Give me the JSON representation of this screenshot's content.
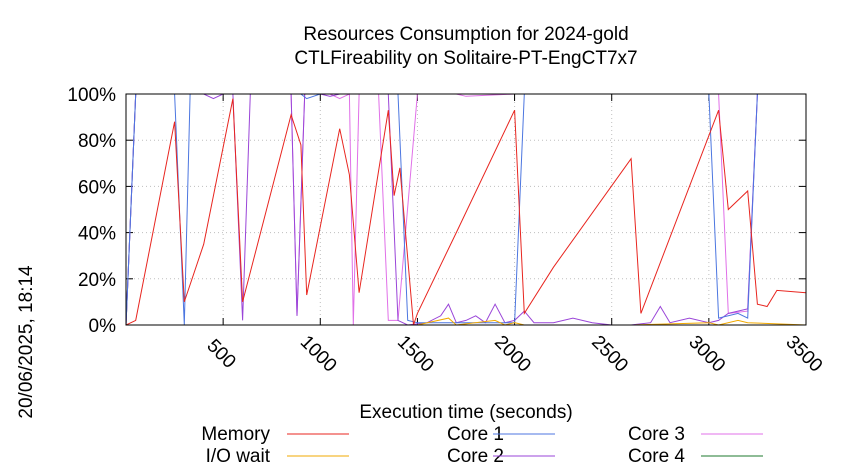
{
  "chart_data": {
    "type": "line",
    "title_line1": "Resources Consumption for 2024-gold",
    "title_line2": "CTLFireability on Solitaire-PT-EngCT7x7",
    "xlabel": "Execution time (seconds)",
    "ylabel": "",
    "side_label": "20/06/2025, 18:14",
    "xlim": [
      0,
      3500
    ],
    "ylim": [
      0,
      100
    ],
    "x_ticks": [
      {
        "value": 500,
        "label": "500"
      },
      {
        "value": 1000,
        "label": "1000"
      },
      {
        "value": 1500,
        "label": "1500"
      },
      {
        "value": 2000,
        "label": "2000"
      },
      {
        "value": 2500,
        "label": "2500"
      },
      {
        "value": 3000,
        "label": "3000"
      },
      {
        "value": 3500,
        "label": "3500"
      }
    ],
    "y_ticks": [
      {
        "value": 0,
        "label": "0%"
      },
      {
        "value": 20,
        "label": "20%"
      },
      {
        "value": 40,
        "label": "40%"
      },
      {
        "value": 60,
        "label": "60%"
      },
      {
        "value": 80,
        "label": "80%"
      },
      {
        "value": 100,
        "label": "100%"
      }
    ],
    "grid": true,
    "legend_position": "bottom",
    "series": [
      {
        "name": "Memory",
        "color": "#e8251f",
        "points": [
          [
            0,
            0
          ],
          [
            50,
            2
          ],
          [
            250,
            88
          ],
          [
            300,
            10
          ],
          [
            400,
            35
          ],
          [
            550,
            98
          ],
          [
            600,
            10
          ],
          [
            850,
            91
          ],
          [
            900,
            78
          ],
          [
            930,
            13
          ],
          [
            1100,
            85
          ],
          [
            1150,
            65
          ],
          [
            1200,
            14
          ],
          [
            1350,
            93
          ],
          [
            1380,
            56
          ],
          [
            1410,
            68
          ],
          [
            1480,
            0
          ],
          [
            1500,
            5
          ],
          [
            1700,
            40
          ],
          [
            2000,
            93
          ],
          [
            2050,
            5
          ],
          [
            2200,
            25
          ],
          [
            2600,
            72
          ],
          [
            2650,
            5
          ],
          [
            3050,
            93
          ],
          [
            3100,
            50
          ],
          [
            3200,
            58
          ],
          [
            3250,
            9
          ],
          [
            3300,
            8
          ],
          [
            3350,
            15
          ],
          [
            3500,
            14
          ]
        ]
      },
      {
        "name": "I/O wait",
        "color": "#f2a900",
        "points": [
          [
            0,
            0
          ],
          [
            1500,
            0
          ],
          [
            1660,
            3
          ],
          [
            1700,
            0
          ],
          [
            1900,
            2
          ],
          [
            1950,
            0
          ],
          [
            2000,
            1
          ],
          [
            2050,
            0
          ],
          [
            2600,
            0
          ],
          [
            3000,
            1
          ],
          [
            3050,
            0
          ],
          [
            3150,
            2
          ],
          [
            3200,
            1
          ],
          [
            3500,
            0
          ]
        ]
      },
      {
        "name": "Core 1",
        "color": "#4c76e0",
        "points": [
          [
            0,
            0
          ],
          [
            50,
            100
          ],
          [
            250,
            100
          ],
          [
            300,
            0
          ],
          [
            330,
            100
          ],
          [
            650,
            100
          ],
          [
            700,
            100
          ],
          [
            900,
            100
          ],
          [
            930,
            98
          ],
          [
            1000,
            100
          ],
          [
            1400,
            100
          ],
          [
            1450,
            2
          ],
          [
            1500,
            1
          ],
          [
            2000,
            1
          ],
          [
            2050,
            100
          ],
          [
            2150,
            100
          ],
          [
            2600,
            100
          ],
          [
            3000,
            100
          ],
          [
            3050,
            3
          ],
          [
            3150,
            5
          ],
          [
            3200,
            3
          ],
          [
            3250,
            100
          ],
          [
            3500,
            100
          ]
        ]
      },
      {
        "name": "Core 2",
        "color": "#9a45d8",
        "points": [
          [
            0,
            0
          ],
          [
            50,
            100
          ],
          [
            350,
            100
          ],
          [
            400,
            100
          ],
          [
            450,
            98
          ],
          [
            500,
            100
          ],
          [
            550,
            100
          ],
          [
            600,
            2
          ],
          [
            640,
            100
          ],
          [
            850,
            100
          ],
          [
            880,
            4
          ],
          [
            920,
            100
          ],
          [
            1000,
            100
          ],
          [
            1050,
            99
          ],
          [
            1100,
            100
          ],
          [
            1350,
            100
          ],
          [
            1400,
            2
          ],
          [
            1450,
            0
          ],
          [
            1550,
            1
          ],
          [
            1620,
            4
          ],
          [
            1660,
            9
          ],
          [
            1700,
            1
          ],
          [
            1750,
            2
          ],
          [
            1800,
            4
          ],
          [
            1850,
            1
          ],
          [
            1900,
            9
          ],
          [
            1950,
            1
          ],
          [
            2000,
            2
          ],
          [
            2050,
            6
          ],
          [
            2100,
            1
          ],
          [
            2200,
            1
          ],
          [
            2300,
            3
          ],
          [
            2400,
            1
          ],
          [
            2500,
            0
          ],
          [
            2600,
            0
          ],
          [
            2700,
            1
          ],
          [
            2750,
            8
          ],
          [
            2800,
            1
          ],
          [
            2900,
            3
          ],
          [
            3000,
            1
          ],
          [
            3050,
            2
          ],
          [
            3100,
            5
          ],
          [
            3150,
            6
          ],
          [
            3200,
            7
          ],
          [
            3250,
            100
          ],
          [
            3500,
            100
          ]
        ]
      },
      {
        "name": "Core 3",
        "color": "#e070e8",
        "points": [
          [
            0,
            0
          ],
          [
            50,
            100
          ],
          [
            850,
            100
          ],
          [
            880,
            4
          ],
          [
            920,
            100
          ],
          [
            1050,
            100
          ],
          [
            1100,
            98
          ],
          [
            1150,
            100
          ],
          [
            1170,
            0
          ],
          [
            1200,
            100
          ],
          [
            1300,
            100
          ],
          [
            1350,
            2
          ],
          [
            1400,
            2
          ],
          [
            1500,
            100
          ],
          [
            1700,
            100
          ],
          [
            1750,
            99
          ],
          [
            2000,
            100
          ],
          [
            2050,
            100
          ],
          [
            2200,
            100
          ],
          [
            2600,
            100
          ],
          [
            3000,
            100
          ],
          [
            3050,
            100
          ],
          [
            3100,
            5
          ],
          [
            3200,
            6
          ],
          [
            3250,
            100
          ],
          [
            3500,
            100
          ]
        ]
      },
      {
        "name": "Core 4",
        "color": "#1e7a2e",
        "points": [
          [
            0,
            0
          ],
          [
            50,
            100
          ],
          [
            3500,
            100
          ]
        ]
      }
    ]
  }
}
